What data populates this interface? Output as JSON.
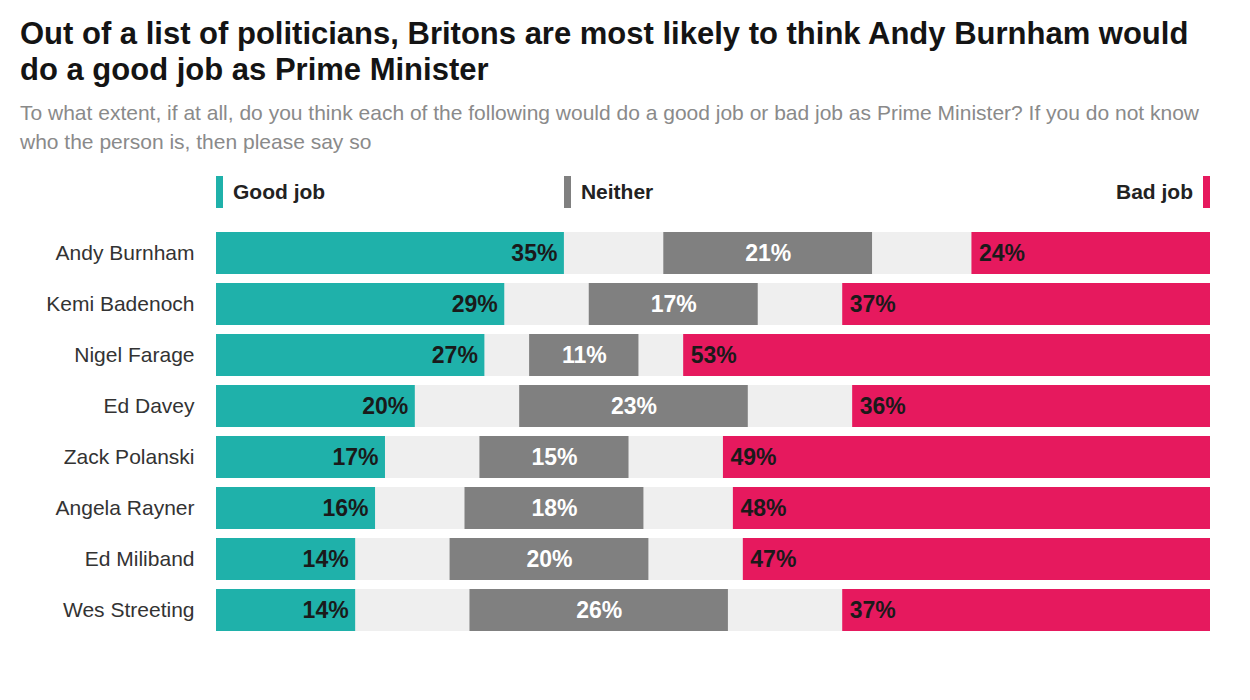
{
  "chart_data": {
    "type": "bar",
    "orientation": "horizontal",
    "stacked": true,
    "title": "Out of a list of politicians, Britons are most likely to think Andy Burnham would do a good job as Prime Minister",
    "subtitle": "To what extent, if at all, do you think each of the following would do a good job or bad job as Prime Minister? If you do not know who the person is, then please say so",
    "categories": [
      "Andy Burnham",
      "Kemi Badenoch",
      "Nigel Farage",
      "Ed Davey",
      "Zack Polanski",
      "Angela Rayner",
      "Ed Miliband",
      "Wes Streeting"
    ],
    "series": [
      {
        "name": "Good job",
        "color": "#1fb1aa",
        "values": [
          35,
          29,
          27,
          20,
          17,
          16,
          14,
          14
        ],
        "value_labels": [
          "35%",
          "29%",
          "27%",
          "20%",
          "17%",
          "16%",
          "14%",
          "14%"
        ]
      },
      {
        "name": "Neither",
        "color": "#808080",
        "values": [
          21,
          17,
          11,
          23,
          15,
          18,
          20,
          26
        ],
        "value_labels": [
          "21%",
          "17%",
          "11%",
          "23%",
          "15%",
          "18%",
          "20%",
          "26%"
        ]
      },
      {
        "name": "Bad job",
        "color": "#e6195e",
        "values": [
          24,
          37,
          53,
          36,
          49,
          48,
          47,
          37
        ],
        "value_labels": [
          "24%",
          "37%",
          "53%",
          "36%",
          "49%",
          "48%",
          "47%",
          "37%"
        ]
      }
    ],
    "xlim": [
      0,
      100
    ],
    "xticks": [],
    "data_labels": true,
    "tick_labels": "y",
    "legend": "top",
    "grid": false
  }
}
